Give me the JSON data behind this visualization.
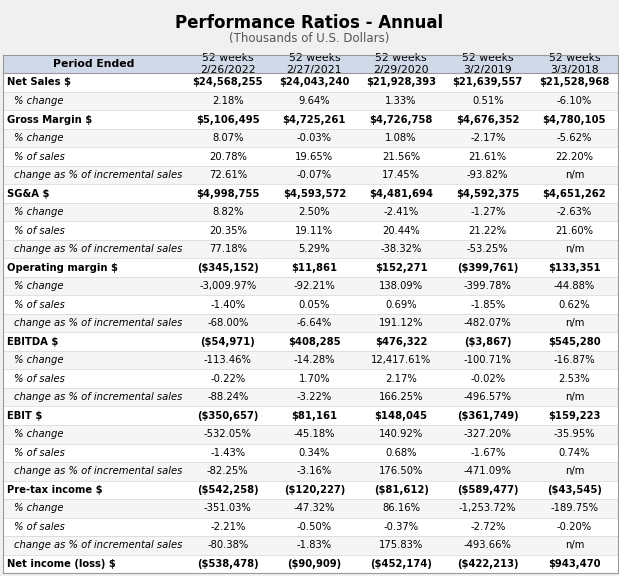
{
  "title": "Performance Ratios - Annual",
  "subtitle": "(Thousands of U.S. Dollars)",
  "columns": [
    "Period Ended",
    "52 weeks\n2/26/2022",
    "52 weeks\n2/27/2021",
    "52 weeks\n2/29/2020",
    "52 weeks\n3/2/2019",
    "52 weeks\n3/3/2018"
  ],
  "rows": [
    [
      "Net Sales $",
      "$24,568,255",
      "$24,043,240",
      "$21,928,393",
      "$21,639,557",
      "$21,528,968"
    ],
    [
      "% change",
      "2.18%",
      "9.64%",
      "1.33%",
      "0.51%",
      "-6.10%"
    ],
    [
      "Gross Margin $",
      "$5,106,495",
      "$4,725,261",
      "$4,726,758",
      "$4,676,352",
      "$4,780,105"
    ],
    [
      "% change",
      "8.07%",
      "-0.03%",
      "1.08%",
      "-2.17%",
      "-5.62%"
    ],
    [
      "% of sales",
      "20.78%",
      "19.65%",
      "21.56%",
      "21.61%",
      "22.20%"
    ],
    [
      "change as % of incremental sales",
      "72.61%",
      "-0.07%",
      "17.45%",
      "-93.82%",
      "n/m"
    ],
    [
      "SG&A $",
      "$4,998,755",
      "$4,593,572",
      "$4,481,694",
      "$4,592,375",
      "$4,651,262"
    ],
    [
      "% change",
      "8.82%",
      "2.50%",
      "-2.41%",
      "-1.27%",
      "-2.63%"
    ],
    [
      "% of sales",
      "20.35%",
      "19.11%",
      "20.44%",
      "21.22%",
      "21.60%"
    ],
    [
      "change as % of incremental sales",
      "77.18%",
      "5.29%",
      "-38.32%",
      "-53.25%",
      "n/m"
    ],
    [
      "Operating margin $",
      "($345,152)",
      "$11,861",
      "$152,271",
      "($399,761)",
      "$133,351"
    ],
    [
      "% change",
      "-3,009.97%",
      "-92.21%",
      "138.09%",
      "-399.78%",
      "-44.88%"
    ],
    [
      "% of sales",
      "-1.40%",
      "0.05%",
      "0.69%",
      "-1.85%",
      "0.62%"
    ],
    [
      "change as % of incremental sales",
      "-68.00%",
      "-6.64%",
      "191.12%",
      "-482.07%",
      "n/m"
    ],
    [
      "EBITDA $",
      "($54,971)",
      "$408,285",
      "$476,322",
      "($3,867)",
      "$545,280"
    ],
    [
      "% change",
      "-113.46%",
      "-14.28%",
      "12,417.61%",
      "-100.71%",
      "-16.87%"
    ],
    [
      "% of sales",
      "-0.22%",
      "1.70%",
      "2.17%",
      "-0.02%",
      "2.53%"
    ],
    [
      "change as % of incremental sales",
      "-88.24%",
      "-3.22%",
      "166.25%",
      "-496.57%",
      "n/m"
    ],
    [
      "EBIT $",
      "($350,657)",
      "$81,161",
      "$148,045",
      "($361,749)",
      "$159,223"
    ],
    [
      "% change",
      "-532.05%",
      "-45.18%",
      "140.92%",
      "-327.20%",
      "-35.95%"
    ],
    [
      "% of sales",
      "-1.43%",
      "0.34%",
      "0.68%",
      "-1.67%",
      "0.74%"
    ],
    [
      "change as % of incremental sales",
      "-82.25%",
      "-3.16%",
      "176.50%",
      "-471.09%",
      "n/m"
    ],
    [
      "Pre-tax income $",
      "($542,258)",
      "($120,227)",
      "($81,612)",
      "($589,477)",
      "($43,545)"
    ],
    [
      "% change",
      "-351.03%",
      "-47.32%",
      "86.16%",
      "-1,253.72%",
      "-189.75%"
    ],
    [
      "% of sales",
      "-2.21%",
      "-0.50%",
      "-0.37%",
      "-2.72%",
      "-0.20%"
    ],
    [
      "change as % of incremental sales",
      "-80.38%",
      "-1.83%",
      "175.83%",
      "-493.66%",
      "n/m"
    ],
    [
      "Net income (loss) $",
      "($538,478)",
      "($90,909)",
      "($452,174)",
      "($422,213)",
      "$943,470"
    ]
  ],
  "bold_rows": [
    0,
    2,
    6,
    10,
    14,
    18,
    22,
    26
  ],
  "indented_rows": [
    1,
    3,
    4,
    5,
    7,
    8,
    9,
    11,
    12,
    13,
    15,
    16,
    17,
    19,
    20,
    21,
    23,
    24,
    25
  ],
  "header_bg": "#cfd9e8",
  "data_row_bg_even": "#f5f5f5",
  "data_row_bg_odd": "#ffffff",
  "bold_row_bg": "#ffffff",
  "title_fontsize": 12,
  "subtitle_fontsize": 8.5,
  "cell_fontsize": 7.2,
  "header_fontsize": 7.8
}
